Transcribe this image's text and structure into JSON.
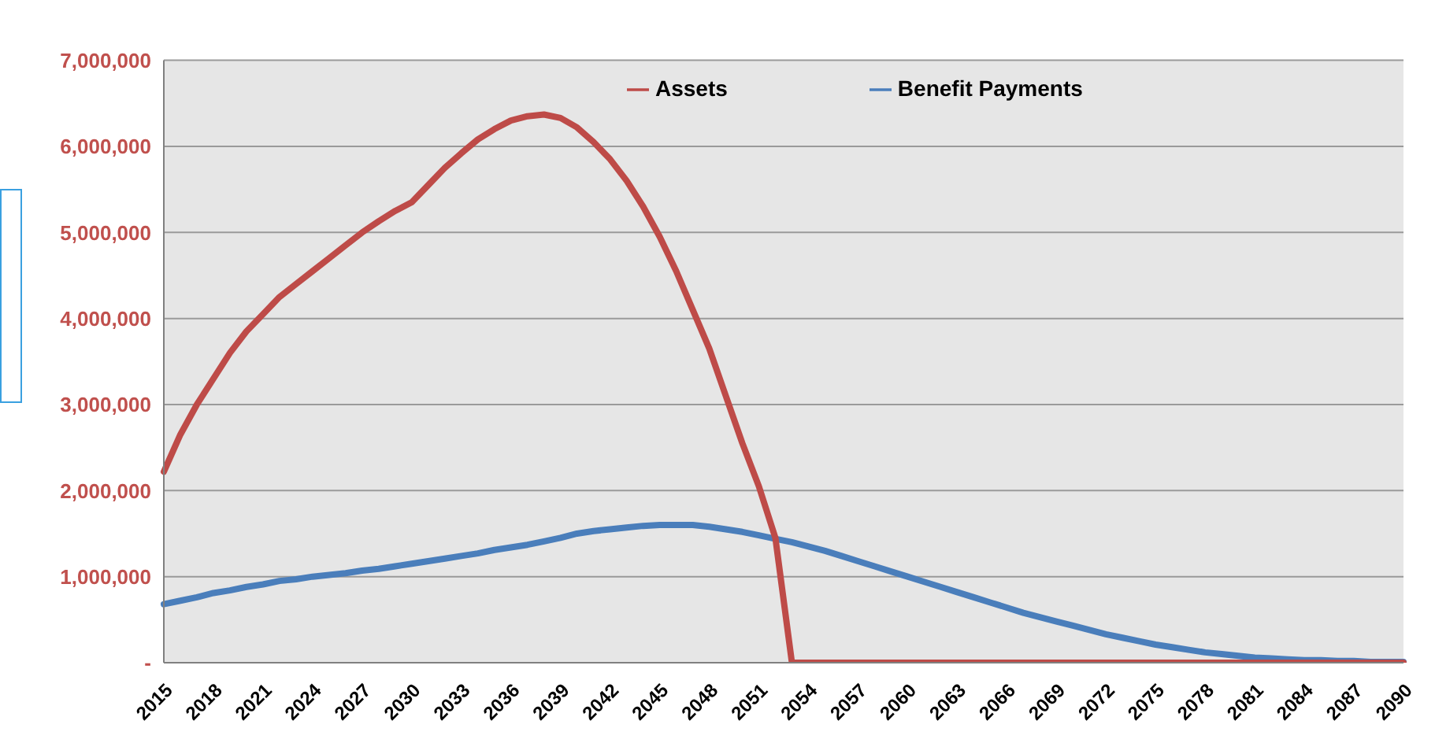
{
  "chart_data": {
    "type": "line",
    "categories": [
      "2015",
      null,
      null,
      "2018",
      null,
      null,
      "2021",
      null,
      null,
      "2024",
      null,
      null,
      "2027",
      null,
      null,
      "2030",
      null,
      null,
      "2033",
      null,
      null,
      "2036",
      null,
      null,
      "2039",
      null,
      null,
      "2042",
      null,
      null,
      "2045",
      null,
      null,
      "2048",
      null,
      null,
      "2051",
      null,
      null,
      "2054",
      null,
      null,
      "2057",
      null,
      null,
      "2060",
      null,
      null,
      "2063",
      null,
      null,
      "2066",
      null,
      null,
      "2069",
      null,
      null,
      "2072",
      null,
      null,
      "2075",
      null,
      null,
      "2078",
      null,
      null,
      "2081",
      null,
      null,
      "2084",
      null,
      null,
      "2087",
      null,
      null,
      "2090"
    ],
    "series": [
      {
        "name": "Benefit Payments",
        "color": "#4a7ebb",
        "values": [
          680000,
          720000,
          760000,
          810000,
          840000,
          880000,
          910000,
          950000,
          970000,
          1000000,
          1020000,
          1040000,
          1070000,
          1090000,
          1120000,
          1150000,
          1180000,
          1210000,
          1240000,
          1270000,
          1310000,
          1340000,
          1370000,
          1410000,
          1450000,
          1500000,
          1530000,
          1550000,
          1570000,
          1590000,
          1600000,
          1600000,
          1600000,
          1580000,
          1550000,
          1520000,
          1480000,
          1440000,
          1400000,
          1350000,
          1300000,
          1240000,
          1180000,
          1120000,
          1060000,
          1000000,
          940000,
          880000,
          820000,
          760000,
          700000,
          640000,
          580000,
          530000,
          480000,
          430000,
          380000,
          330000,
          290000,
          250000,
          210000,
          180000,
          150000,
          120000,
          100000,
          80000,
          60000,
          50000,
          40000,
          30000,
          30000,
          20000,
          20000,
          10000,
          10000,
          10000
        ]
      },
      {
        "name": "Assets",
        "color": "#be4b48",
        "values": [
          2220000,
          2650000,
          3000000,
          3300000,
          3600000,
          3850000,
          4050000,
          4250000,
          4400000,
          4550000,
          4700000,
          4850000,
          5000000,
          5130000,
          5250000,
          5350000,
          5550000,
          5750000,
          5920000,
          6080000,
          6200000,
          6300000,
          6350000,
          6370000,
          6330000,
          6220000,
          6050000,
          5850000,
          5600000,
          5300000,
          4950000,
          4550000,
          4100000,
          3650000,
          3100000,
          2550000,
          2050000,
          1450000,
          0,
          0,
          0,
          0,
          0,
          0,
          0,
          0,
          0,
          0,
          0,
          0,
          0,
          0,
          0,
          0,
          0,
          0,
          0,
          0,
          0,
          0,
          0,
          0,
          0,
          0,
          0,
          0,
          0,
          0,
          0,
          0,
          0,
          0,
          0,
          0,
          0,
          0
        ]
      }
    ],
    "ylim": [
      0,
      7000000
    ],
    "yticks": [
      {
        "value": 0,
        "label": "-"
      },
      {
        "value": 1000000,
        "label": "1,000,000"
      },
      {
        "value": 2000000,
        "label": "2,000,000"
      },
      {
        "value": 3000000,
        "label": "3,000,000"
      },
      {
        "value": 4000000,
        "label": "4,000,000"
      },
      {
        "value": 5000000,
        "label": "5,000,000"
      },
      {
        "value": 6000000,
        "label": "6,000,000"
      },
      {
        "value": 7000000,
        "label": "7,000,000"
      }
    ],
    "grid": "y",
    "legend": "top",
    "marker": "none",
    "line_style": "solid"
  }
}
